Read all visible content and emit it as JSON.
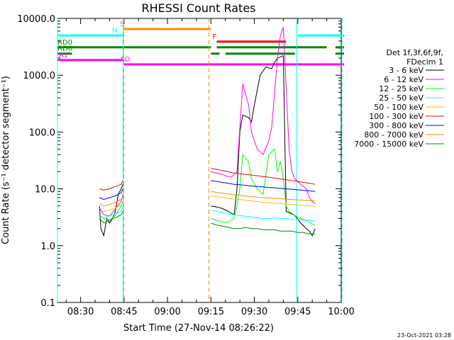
{
  "chart_data": {
    "type": "line",
    "title": "RHESSI Count Rates",
    "xlabel": "Start Time (27-Nov-14 08:26:22)",
    "ylabel": "Count Rate (s⁻¹ detector segment⁻¹)",
    "yscale": "log",
    "ylim": [
      0.1,
      10000
    ],
    "xlim_minutes": [
      22,
      120
    ],
    "x_ticks": [
      {
        "label": "08:30",
        "minutes": 30
      },
      {
        "label": "08:45",
        "minutes": 45
      },
      {
        "label": "09:00",
        "minutes": 60
      },
      {
        "label": "09:15",
        "minutes": 75
      },
      {
        "label": "09:30",
        "minutes": 90
      },
      {
        "label": "09:45",
        "minutes": 105
      },
      {
        "label": "10:00",
        "minutes": 120
      }
    ],
    "y_ticks": [
      "0.1",
      "1.0",
      "10.0",
      "100.0",
      "1000.0",
      "10000.0"
    ],
    "legend_header": [
      "Det 1f,3f,6f,9f,",
      "FDecim 1"
    ],
    "legend_placement": "right",
    "series": [
      {
        "name": "3 - 6 keV",
        "color": "#000000",
        "points": [
          [
            36.5,
            5
          ],
          [
            37,
            2
          ],
          [
            38,
            1.5
          ],
          [
            39,
            3
          ],
          [
            40,
            2.5
          ],
          [
            41,
            3
          ],
          [
            42,
            4
          ],
          [
            43,
            8
          ],
          [
            44,
            10
          ],
          [
            44.6,
            12
          ],
          [
            75,
            5
          ],
          [
            77,
            4.8
          ],
          [
            79,
            4.5
          ],
          [
            81,
            4
          ],
          [
            83,
            3.5
          ],
          [
            84,
            10
          ],
          [
            85,
            100
          ],
          [
            86,
            200
          ],
          [
            88,
            180
          ],
          [
            89,
            150
          ],
          [
            90,
            300
          ],
          [
            92,
            1000
          ],
          [
            94,
            1400
          ],
          [
            96,
            1300
          ],
          [
            97,
            1700
          ],
          [
            98,
            2000
          ],
          [
            100,
            2200
          ],
          [
            101,
            4
          ],
          [
            102,
            3.8
          ],
          [
            104,
            3.4
          ],
          [
            106,
            2.5
          ],
          [
            108,
            2
          ],
          [
            109,
            1.8
          ],
          [
            110,
            1.5
          ],
          [
            111,
            2
          ]
        ]
      },
      {
        "name": "6 - 12 keV",
        "color": "#ff00ff",
        "points": [
          [
            36.5,
            4.6
          ],
          [
            38,
            3.5
          ],
          [
            40,
            3.3
          ],
          [
            42,
            4.4
          ],
          [
            44,
            6
          ],
          [
            44.6,
            8
          ],
          [
            75,
            20
          ],
          [
            79,
            18
          ],
          [
            80,
            17
          ],
          [
            82,
            16
          ],
          [
            84,
            20
          ],
          [
            85,
            120
          ],
          [
            86,
            700
          ],
          [
            88,
            300
          ],
          [
            89,
            100
          ],
          [
            91,
            50
          ],
          [
            93,
            40
          ],
          [
            95,
            70
          ],
          [
            96,
            120
          ],
          [
            98,
            2000
          ],
          [
            99,
            5000
          ],
          [
            100,
            7000
          ],
          [
            101,
            600
          ],
          [
            102,
            50
          ],
          [
            103,
            20
          ],
          [
            104,
            15
          ],
          [
            106,
            12
          ],
          [
            108,
            10
          ],
          [
            109,
            7
          ],
          [
            110,
            6
          ],
          [
            111,
            5.5
          ]
        ]
      },
      {
        "name": "12 - 25 keV",
        "color": "#00ff00",
        "points": [
          [
            36.5,
            3.5
          ],
          [
            38,
            3
          ],
          [
            40,
            2.8
          ],
          [
            42,
            3.4
          ],
          [
            44,
            5
          ],
          [
            44.6,
            6
          ],
          [
            75,
            3
          ],
          [
            77,
            2.8
          ],
          [
            79,
            2.6
          ],
          [
            81,
            2.6
          ],
          [
            83,
            3
          ],
          [
            84,
            5
          ],
          [
            85,
            10
          ],
          [
            86,
            40
          ],
          [
            88,
            30
          ],
          [
            89,
            15
          ],
          [
            91,
            10
          ],
          [
            93,
            8
          ],
          [
            95,
            40
          ],
          [
            97,
            50
          ],
          [
            98,
            20
          ],
          [
            99,
            30
          ],
          [
            100,
            15
          ],
          [
            101,
            5
          ],
          [
            102,
            4
          ],
          [
            104,
            3.4
          ],
          [
            106,
            3
          ],
          [
            108,
            2.8
          ],
          [
            109,
            2.6
          ],
          [
            110,
            2.4
          ],
          [
            111,
            2.3
          ]
        ]
      },
      {
        "name": "25 - 50 keV",
        "color": "#00ffff",
        "points": [
          [
            36.5,
            3.2
          ],
          [
            38,
            3.1
          ],
          [
            40,
            3.3
          ],
          [
            42,
            3.6
          ],
          [
            44,
            4
          ],
          [
            44.6,
            5
          ],
          [
            75,
            4.2
          ],
          [
            77,
            4.0
          ],
          [
            79,
            3.8
          ],
          [
            81,
            3.6
          ],
          [
            83,
            3.5
          ],
          [
            85,
            3.4
          ],
          [
            87,
            3.3
          ],
          [
            89,
            3.2
          ],
          [
            91,
            3.1
          ],
          [
            93,
            3.0
          ],
          [
            95,
            3.0
          ],
          [
            97,
            3.1
          ],
          [
            99,
            3.0
          ],
          [
            101,
            3.0
          ],
          [
            103,
            2.9
          ],
          [
            105,
            2.9
          ],
          [
            107,
            2.8
          ],
          [
            109,
            2.8
          ],
          [
            111,
            2.7
          ]
        ]
      },
      {
        "name": "50 - 100 keV",
        "color": "#ffbb00",
        "points": [
          [
            36.5,
            4
          ],
          [
            38,
            4
          ],
          [
            40,
            4.2
          ],
          [
            42,
            4.6
          ],
          [
            44,
            5.2
          ],
          [
            44.6,
            6
          ],
          [
            75,
            7.5
          ],
          [
            77,
            7.2
          ],
          [
            79,
            7.0
          ],
          [
            81,
            6.8
          ],
          [
            83,
            6.6
          ],
          [
            85,
            6.5
          ],
          [
            87,
            6.3
          ],
          [
            89,
            6.1
          ],
          [
            91,
            6.0
          ],
          [
            93,
            5.8
          ],
          [
            95,
            5.7
          ],
          [
            97,
            5.6
          ],
          [
            99,
            5.5
          ],
          [
            101,
            5.4
          ],
          [
            103,
            5.3
          ],
          [
            105,
            5.2
          ],
          [
            107,
            5.1
          ],
          [
            109,
            5.0
          ],
          [
            111,
            4.9
          ]
        ]
      },
      {
        "name": "100 - 300 keV",
        "color": "#ff0000",
        "points": [
          [
            36.5,
            10
          ],
          [
            38,
            9.5
          ],
          [
            40,
            10
          ],
          [
            42,
            11
          ],
          [
            44,
            12
          ],
          [
            44.6,
            14
          ],
          [
            75,
            23
          ],
          [
            77,
            22
          ],
          [
            79,
            21
          ],
          [
            81,
            20
          ],
          [
            83,
            19
          ],
          [
            85,
            18.5
          ],
          [
            87,
            18
          ],
          [
            89,
            17.5
          ],
          [
            91,
            17
          ],
          [
            93,
            16.5
          ],
          [
            95,
            16
          ],
          [
            97,
            15.5
          ],
          [
            99,
            15
          ],
          [
            101,
            14.5
          ],
          [
            103,
            14
          ],
          [
            105,
            13.5
          ],
          [
            107,
            13
          ],
          [
            109,
            12.5
          ],
          [
            111,
            12
          ]
        ]
      },
      {
        "name": "300 - 800 keV",
        "color": "#0000ff",
        "points": [
          [
            36.5,
            7
          ],
          [
            38,
            6.5
          ],
          [
            40,
            7
          ],
          [
            42,
            7.5
          ],
          [
            44,
            8.5
          ],
          [
            44.6,
            10
          ],
          [
            75,
            14
          ],
          [
            77,
            13.5
          ],
          [
            79,
            13
          ],
          [
            81,
            12.5
          ],
          [
            83,
            12
          ],
          [
            85,
            11.8
          ],
          [
            87,
            11.5
          ],
          [
            89,
            11.2
          ],
          [
            91,
            11
          ],
          [
            93,
            10.8
          ],
          [
            95,
            10.6
          ],
          [
            97,
            10.4
          ],
          [
            99,
            10.2
          ],
          [
            101,
            10
          ],
          [
            103,
            9.8
          ],
          [
            105,
            9.6
          ],
          [
            107,
            9.4
          ],
          [
            109,
            9.2
          ],
          [
            111,
            9
          ]
        ]
      },
      {
        "name": "800 - 7000 keV",
        "color": "#ff8800",
        "points": [
          [
            36.5,
            5.5
          ],
          [
            38,
            5
          ],
          [
            40,
            5.3
          ],
          [
            42,
            5.8
          ],
          [
            44,
            6.5
          ],
          [
            44.6,
            7.5
          ],
          [
            75,
            9
          ],
          [
            77,
            8.7
          ],
          [
            79,
            8.4
          ],
          [
            81,
            8.1
          ],
          [
            83,
            7.9
          ],
          [
            85,
            7.7
          ],
          [
            87,
            7.5
          ],
          [
            89,
            7.3
          ],
          [
            91,
            7.1
          ],
          [
            93,
            7.0
          ],
          [
            95,
            6.9
          ],
          [
            97,
            6.8
          ],
          [
            99,
            6.7
          ],
          [
            101,
            6.6
          ],
          [
            103,
            6.5
          ],
          [
            105,
            6.4
          ],
          [
            107,
            6.3
          ],
          [
            109,
            6.2
          ],
          [
            111,
            6.1
          ]
        ]
      },
      {
        "name": "7000 - 15000 keV",
        "color": "#008800",
        "points": [
          [
            36.5,
            3
          ],
          [
            38,
            2.5
          ],
          [
            40,
            2.8
          ],
          [
            42,
            3.1
          ],
          [
            44,
            3.5
          ],
          [
            44.6,
            4
          ],
          [
            75,
            2.5
          ],
          [
            77,
            2.3
          ],
          [
            79,
            2.2
          ],
          [
            81,
            2.1
          ],
          [
            83,
            2.0
          ],
          [
            85,
            2.0
          ],
          [
            87,
            2.1
          ],
          [
            89,
            2.0
          ],
          [
            91,
            2.0
          ],
          [
            93,
            1.9
          ],
          [
            95,
            1.9
          ],
          [
            97,
            1.9
          ],
          [
            99,
            1.8
          ],
          [
            101,
            1.8
          ],
          [
            103,
            1.8
          ],
          [
            105,
            1.7
          ],
          [
            107,
            1.7
          ],
          [
            109,
            1.6
          ],
          [
            111,
            1.6
          ]
        ]
      }
    ],
    "flag_bars": [
      {
        "label": "S",
        "color": "#ff8800",
        "y": 6500,
        "segments": [
          [
            45,
            75
          ]
        ]
      },
      {
        "label": "N",
        "color": "#00ffff",
        "y": 5000,
        "segments": [
          [
            22,
            45
          ],
          [
            105,
            121
          ]
        ]
      },
      {
        "label": "F",
        "color": "#ff0000",
        "y": 3900,
        "segments": [
          [
            77,
            101
          ]
        ]
      },
      {
        "label": "RD0",
        "color": "#008800",
        "y": 3100,
        "segments": [
          [
            22,
            75
          ],
          [
            77,
            115
          ],
          [
            118,
            121
          ]
        ]
      },
      {
        "label": "RD6",
        "color": "#008800",
        "y": 2400,
        "segments": [
          [
            22,
            27
          ],
          [
            75,
            78
          ],
          [
            80,
            104
          ],
          [
            118,
            121
          ]
        ]
      },
      {
        "label": "A1",
        "color": "#ff00ff",
        "y": 1850,
        "segments": [
          [
            22,
            45
          ]
        ]
      },
      {
        "label": "AO",
        "color": "#ff00ff",
        "y": 1550,
        "segments": [
          [
            45,
            79
          ],
          [
            79,
            90
          ],
          [
            90,
            121
          ]
        ]
      }
    ],
    "markers": [
      {
        "minutes": 22,
        "color": "#00ffff",
        "style": "solid"
      },
      {
        "minutes": 44.7,
        "color": "#00ffff",
        "style": "solid"
      },
      {
        "minutes": 44.9,
        "color": "#ff8800",
        "style": "dashed"
      },
      {
        "minutes": 74.3,
        "color": "#ff8800",
        "style": "dashed"
      },
      {
        "minutes": 104.6,
        "color": "#00ffff",
        "style": "solid"
      },
      {
        "minutes": 120.3,
        "color": "#00ffff",
        "style": "dashed"
      }
    ],
    "timestamp": "23-Oct-2021 03:28"
  }
}
